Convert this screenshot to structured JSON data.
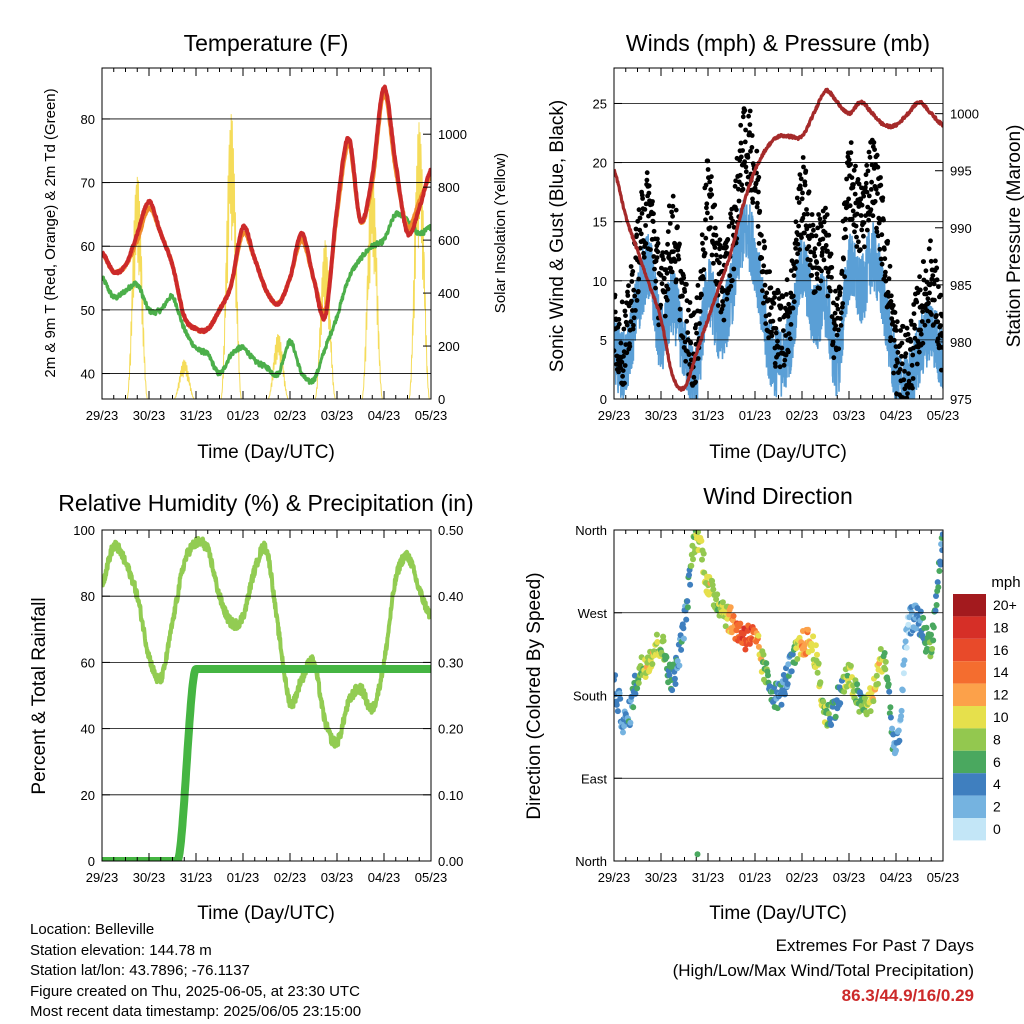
{
  "temperature": {
    "title": "Temperature (F)",
    "ylabel_left": "2m & 9m T (Red, Orange) & 2m Td (Green)",
    "ylabel_right": "Solar Insolation (Yellow)",
    "xlabel": "Time (Day/UTC)",
    "x_ticks": [
      "29/23",
      "30/23",
      "31/23",
      "01/23",
      "02/23",
      "03/23",
      "04/23",
      "05/23"
    ],
    "left_ticks": [
      "40",
      "50",
      "60",
      "70",
      "80"
    ],
    "right_ticks": [
      "0",
      "200",
      "400",
      "600",
      "800",
      "1000"
    ]
  },
  "winds": {
    "title": "Winds (mph) & Pressure (mb)",
    "ylabel_left": "Sonic Wind & Gust (Blue, Black)",
    "ylabel_right": "Station Pressure (Maroon)",
    "xlabel": "Time (Day/UTC)",
    "x_ticks": [
      "29/23",
      "30/23",
      "31/23",
      "01/23",
      "02/23",
      "03/23",
      "04/23",
      "05/23"
    ],
    "left_ticks": [
      "0",
      "5",
      "10",
      "15",
      "20",
      "25"
    ],
    "right_ticks": [
      "975",
      "980",
      "985",
      "990",
      "995",
      "1000"
    ]
  },
  "humidity": {
    "title": "Relative Humidity (%) & Precipitation (in)",
    "ylabel_left": "Percent & Total Rainfall",
    "xlabel": "Time (Day/UTC)",
    "x_ticks": [
      "29/23",
      "30/23",
      "31/23",
      "01/23",
      "02/23",
      "03/23",
      "04/23",
      "05/23"
    ],
    "left_ticks": [
      "0",
      "20",
      "40",
      "60",
      "80",
      "100"
    ],
    "right_ticks": [
      "0.00",
      "0.10",
      "0.20",
      "0.30",
      "0.40",
      "0.50"
    ]
  },
  "direction": {
    "title": "Wind Direction",
    "ylabel_left": "Direction (Colored By Speed)",
    "xlabel": "Time (Day/UTC)",
    "x_ticks": [
      "29/23",
      "30/23",
      "31/23",
      "01/23",
      "02/23",
      "03/23",
      "04/23",
      "05/23"
    ],
    "dir_ticks": [
      "North",
      "East",
      "South",
      "West",
      "North"
    ],
    "legend_title": "mph",
    "legend_labels": [
      "20+",
      "18",
      "16",
      "14",
      "12",
      "10",
      "8",
      "6",
      "4",
      "2",
      "0"
    ],
    "legend_colors": [
      "#a31a1e",
      "#d62f27",
      "#e84a2a",
      "#f46d2f",
      "#fca14a",
      "#e6e04c",
      "#93c84f",
      "#4aa85f",
      "#3f7fbf",
      "#75b3e0",
      "#c3e6f7"
    ]
  },
  "info": {
    "location": "Location: Belleville",
    "elevation": "Station elevation: 144.78 m",
    "latlon": "Station lat/lon: 43.7896; -76.1137",
    "created": "Figure created on Thu, 2025-06-05, at 23:30 UTC",
    "recent": "Most recent data timestamp: 2025/06/05 23:15:00"
  },
  "extremes": {
    "line1": "Extremes For Past 7 Days",
    "line2": "(High/Low/Max Wind/Total Precipitation)",
    "values": "86.3/44.9/16/0.29"
  },
  "colors": {
    "temp_2m": "#cc2a2a",
    "temp_9m": "#f08a2a",
    "dewpoint": "#4caf4a",
    "solar": "#f5dc5a",
    "wind": "#5a9fd6",
    "gust": "#000000",
    "pressure": "#a52a2a",
    "rh": "#92cc52",
    "precip": "#45b542"
  },
  "chart_data": [
    {
      "type": "line",
      "title": "Temperature (F)",
      "xlabel": "Time (Day/UTC)",
      "ylabel": "2m & 9m T (Red, Orange) & 2m Td (Green)",
      "ylabel_right": "Solar Insolation (Yellow)",
      "ylim": [
        36,
        88
      ],
      "ylim_right": [
        0,
        1250
      ],
      "x_ticks": [
        "29/23",
        "30/23",
        "31/23",
        "01/23",
        "02/23",
        "03/23",
        "04/23",
        "05/23"
      ],
      "x": [
        0,
        0.25,
        0.5,
        0.75,
        1,
        1.25,
        1.5,
        1.75,
        2,
        2.25,
        2.5,
        2.75,
        3,
        3.25,
        3.5,
        3.75,
        4,
        4.25,
        4.5,
        4.75,
        5,
        5.25,
        5.5,
        5.75,
        6,
        6.25,
        6.5,
        6.75,
        7
      ],
      "series": [
        {
          "name": "2m T",
          "values": [
            59,
            56,
            57,
            62,
            67,
            62,
            57,
            49,
            47,
            47,
            50,
            54,
            63,
            58,
            53,
            51,
            55,
            62,
            55,
            49,
            66,
            77,
            64,
            71,
            85,
            73,
            62,
            66,
            72
          ]
        },
        {
          "name": "9m T",
          "values": [
            59,
            56,
            57,
            61,
            66,
            62,
            57,
            49,
            47,
            47,
            50,
            54,
            62,
            58,
            53,
            51,
            55,
            61,
            55,
            50,
            65,
            76,
            64,
            70,
            84,
            72,
            63,
            67,
            71
          ]
        },
        {
          "name": "2m Td",
          "values": [
            55,
            52,
            53,
            54,
            50,
            50,
            52,
            47,
            44,
            43,
            40,
            43,
            44,
            42,
            41,
            40,
            45,
            40,
            39,
            44,
            49,
            55,
            58,
            60,
            61,
            65,
            64,
            62,
            63
          ]
        },
        {
          "name": "Solar Insolation",
          "values": [
            0,
            120,
            0,
            900,
            0,
            80,
            0,
            150,
            0,
            60,
            0,
            800,
            0,
            20,
            0,
            550,
            0,
            200,
            0,
            600,
            0,
            450,
            0,
            500,
            0,
            600,
            0,
            900,
            300
          ]
        }
      ]
    },
    {
      "type": "scatter",
      "title": "Winds (mph) & Pressure (mb)",
      "xlabel": "Time (Day/UTC)",
      "ylabel": "Sonic Wind & Gust (Blue, Black)",
      "ylabel_right": "Station Pressure (Maroon)",
      "ylim": [
        0,
        28
      ],
      "ylim_right": [
        975,
        1004
      ],
      "x_ticks": [
        "29/23",
        "30/23",
        "31/23",
        "01/23",
        "02/23",
        "03/23",
        "04/23",
        "05/23"
      ],
      "x": [
        0,
        0.25,
        0.5,
        0.75,
        1,
        1.25,
        1.5,
        1.75,
        2,
        2.25,
        2.5,
        2.75,
        3,
        3.25,
        3.5,
        3.75,
        4,
        4.25,
        4.5,
        4.75,
        5,
        5.25,
        5.5,
        5.75,
        6,
        6.25,
        6.5,
        6.75,
        7
      ],
      "series": [
        {
          "name": "Sonic Wind",
          "values": [
            4,
            3,
            8,
            11,
            5,
            8,
            4,
            2,
            9,
            6,
            9,
            14,
            12,
            5,
            3,
            5,
            11,
            7,
            8,
            3,
            11,
            9,
            12,
            8,
            2,
            1,
            4,
            6,
            3
          ]
        },
        {
          "name": "Gust",
          "values": [
            6,
            5,
            12,
            16,
            9,
            14,
            7,
            5,
            17,
            10,
            13,
            21,
            19,
            9,
            6,
            8,
            17,
            12,
            13,
            6,
            18,
            15,
            19,
            13,
            4,
            3,
            7,
            10,
            5
          ]
        },
        {
          "name": "Station Pressure",
          "values": [
            995,
            991,
            988,
            985,
            982,
            977,
            976,
            979,
            982,
            985,
            988,
            992,
            995,
            997,
            998,
            998,
            998,
            1000,
            1002,
            1001,
            1000,
            1001,
            1000,
            999,
            999,
            1000,
            1001,
            1000,
            999
          ]
        }
      ]
    },
    {
      "type": "line",
      "title": "Relative Humidity (%) & Precipitation (in)",
      "xlabel": "Time (Day/UTC)",
      "ylabel": "Percent & Total Rainfall",
      "ylim": [
        0,
        100
      ],
      "ylim_right": [
        0,
        0.5
      ],
      "x_ticks": [
        "29/23",
        "30/23",
        "31/23",
        "01/23",
        "02/23",
        "03/23",
        "04/23",
        "05/23"
      ],
      "x": [
        0,
        0.25,
        0.5,
        0.75,
        1,
        1.25,
        1.5,
        1.75,
        2,
        2.25,
        2.5,
        2.75,
        3,
        3.25,
        3.5,
        3.75,
        4,
        4.25,
        4.5,
        4.75,
        5,
        5.25,
        5.5,
        5.75,
        6,
        6.25,
        6.5,
        6.75,
        7
      ],
      "series": [
        {
          "name": "Relative Humidity",
          "values": [
            84,
            95,
            90,
            80,
            62,
            55,
            72,
            90,
            96,
            94,
            80,
            72,
            74,
            88,
            94,
            70,
            48,
            55,
            60,
            42,
            36,
            48,
            52,
            46,
            60,
            85,
            92,
            82,
            74
          ]
        },
        {
          "name": "Total Precipitation",
          "values": [
            0,
            0,
            0,
            0,
            0,
            0,
            0,
            0.12,
            0.29,
            0.29,
            0.29,
            0.29,
            0.29,
            0.29,
            0.29,
            0.29,
            0.29,
            0.29,
            0.29,
            0.29,
            0.29,
            0.29,
            0.29,
            0.29,
            0.29,
            0.29,
            0.29,
            0.29,
            0.29
          ]
        }
      ]
    },
    {
      "type": "scatter",
      "title": "Wind Direction",
      "xlabel": "Time (Day/UTC)",
      "ylabel": "Direction (Colored By Speed)",
      "ylim": [
        0,
        360
      ],
      "x_ticks": [
        "29/23",
        "30/23",
        "31/23",
        "01/23",
        "02/23",
        "03/23",
        "04/23",
        "05/23"
      ],
      "y_ticks": [
        "North",
        "East",
        "South",
        "West",
        "North"
      ],
      "x": [
        0,
        0.25,
        0.5,
        0.75,
        1,
        1.25,
        1.5,
        1.75,
        2,
        2.25,
        2.5,
        2.75,
        3,
        3.25,
        3.5,
        3.75,
        4,
        4.25,
        4.5,
        4.75,
        5,
        5.25,
        5.5,
        5.75,
        6,
        6.25,
        6.5,
        6.75,
        7
      ],
      "series": [
        {
          "name": "Direction",
          "values": [
            190,
            150,
            200,
            220,
            235,
            200,
            260,
            355,
            300,
            280,
            260,
            245,
            240,
            200,
            180,
            210,
            235,
            230,
            160,
            175,
            200,
            170,
            180,
            220,
            120,
            250,
            260,
            240,
            350
          ]
        },
        {
          "name": "Speed",
          "values": [
            4,
            3,
            6,
            10,
            8,
            5,
            4,
            8,
            10,
            8,
            12,
            16,
            14,
            6,
            4,
            4,
            12,
            10,
            8,
            4,
            9,
            6,
            10,
            8,
            2,
            1,
            4,
            6,
            3
          ]
        }
      ]
    }
  ]
}
